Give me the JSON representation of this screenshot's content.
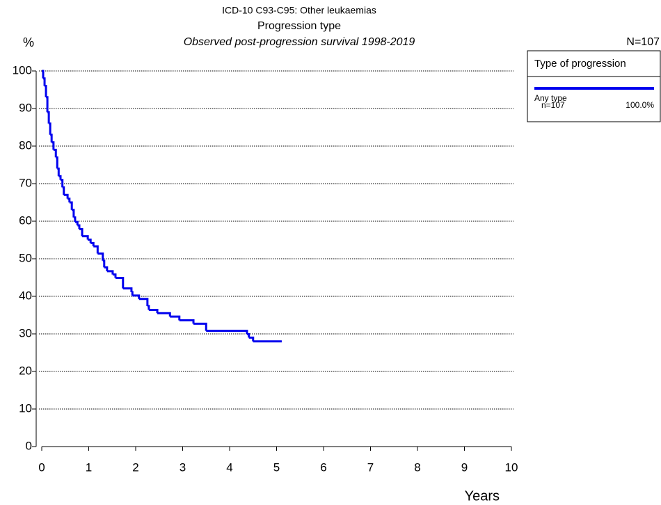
{
  "chart_data": {
    "type": "step",
    "title": "ICD-10 C93-C95: Other leukaemias",
    "subtitle": "Progression type",
    "subtitle2": "Observed post-progression survival 1998-2019",
    "total_label": "N=107",
    "ylabel": "%",
    "xlabel": "Years",
    "legend_title": "Type of progression",
    "legend_position": "right",
    "grid": true,
    "xlim": [
      0,
      10
    ],
    "xticks": [
      0,
      1,
      2,
      3,
      4,
      5,
      6,
      7,
      8,
      9,
      10
    ],
    "ylim": [
      0,
      100
    ],
    "yticks": [
      0,
      10,
      20,
      30,
      40,
      50,
      60,
      70,
      80,
      90,
      100
    ],
    "series": [
      {
        "name": "Any type",
        "n_label": "n=107",
        "share_label": "100.0%",
        "color": "#0000ee",
        "x": [
          0,
          0.03,
          0.06,
          0.09,
          0.12,
          0.15,
          0.18,
          0.21,
          0.25,
          0.3,
          0.33,
          0.36,
          0.4,
          0.44,
          0.47,
          0.55,
          0.59,
          0.64,
          0.68,
          0.71,
          0.76,
          0.8,
          0.86,
          0.98,
          1.04,
          1.1,
          1.19,
          1.3,
          1.33,
          1.39,
          1.51,
          1.57,
          1.73,
          1.91,
          1.93,
          2.07,
          2.25,
          2.28,
          2.46,
          2.73,
          2.93,
          3.23,
          3.5,
          4.37,
          4.41,
          4.5,
          5.11
        ],
        "values": [
          100,
          98,
          96,
          93,
          89,
          86,
          83,
          81,
          79,
          77,
          74,
          72,
          71,
          69,
          67,
          66,
          65,
          63,
          61,
          59.8,
          58.9,
          57.9,
          56,
          55.1,
          54.2,
          53.3,
          51.4,
          49.5,
          47.7,
          46.7,
          45.8,
          44.9,
          42.1,
          41.1,
          40.2,
          39.3,
          37.4,
          36.4,
          35.5,
          34.6,
          33.6,
          32.7,
          30.8,
          29.9,
          29.0,
          28.0,
          28.0
        ]
      }
    ]
  }
}
